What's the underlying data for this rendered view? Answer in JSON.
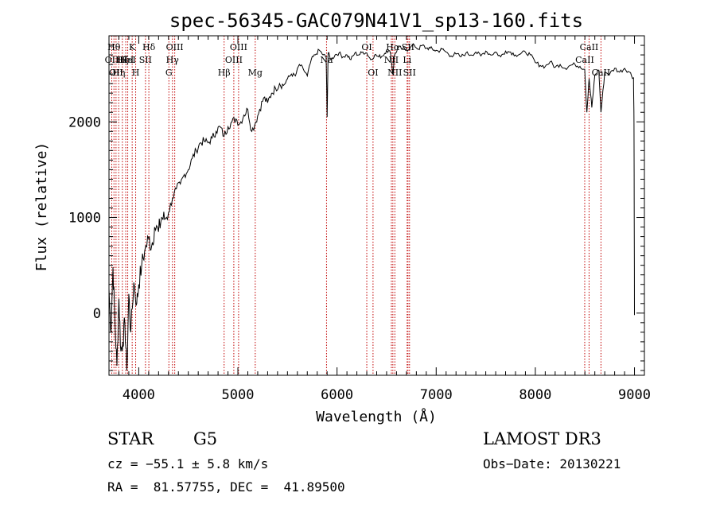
{
  "chart_data": {
    "type": "line",
    "title": "spec-56345-GAC079N41V1_sp13-160.fits",
    "xlabel": "Wavelength (Å)",
    "ylabel": "Flux (relative)",
    "xlim": [
      3700,
      9100
    ],
    "ylim": [
      -650,
      2900
    ],
    "x_ticks": [
      4000,
      5000,
      6000,
      7000,
      8000,
      9000
    ],
    "y_ticks": [
      0,
      1000,
      2000
    ],
    "grid": false,
    "series": [
      {
        "name": "flux",
        "x": [
          3700,
          3720,
          3740,
          3760,
          3780,
          3800,
          3820,
          3840,
          3860,
          3880,
          3900,
          3920,
          3950,
          3980,
          4000,
          4030,
          4060,
          4100,
          4130,
          4160,
          4200,
          4230,
          4260,
          4300,
          4340,
          4380,
          4420,
          4460,
          4500,
          4540,
          4580,
          4620,
          4660,
          4700,
          4740,
          4780,
          4820,
          4860,
          4900,
          4940,
          4980,
          5020,
          5060,
          5100,
          5140,
          5180,
          5220,
          5260,
          5300,
          5340,
          5380,
          5420,
          5460,
          5500,
          5540,
          5580,
          5620,
          5660,
          5700,
          5740,
          5780,
          5820,
          5860,
          5890,
          5900,
          5910,
          5940,
          5980,
          6020,
          6060,
          6100,
          6140,
          6180,
          6220,
          6260,
          6300,
          6340,
          6380,
          6420,
          6460,
          6500,
          6540,
          6563,
          6580,
          6620,
          6660,
          6700,
          6740,
          6780,
          6820,
          6860,
          6900,
          6940,
          6980,
          7020,
          7060,
          7100,
          7150,
          7200,
          7250,
          7300,
          7350,
          7400,
          7450,
          7500,
          7550,
          7600,
          7650,
          7700,
          7750,
          7800,
          7850,
          7900,
          7950,
          8000,
          8050,
          8100,
          8150,
          8200,
          8250,
          8300,
          8350,
          8400,
          8450,
          8498,
          8520,
          8542,
          8570,
          8600,
          8640,
          8662,
          8700,
          8750,
          8800,
          8850,
          8900,
          8950,
          8990,
          8995,
          9000
        ],
        "values": [
          250,
          -200,
          480,
          -100,
          -550,
          150,
          -400,
          -300,
          -100,
          -600,
          200,
          -200,
          320,
          100,
          300,
          500,
          650,
          780,
          700,
          900,
          850,
          1000,
          980,
          1050,
          1200,
          1300,
          1350,
          1450,
          1500,
          1620,
          1700,
          1780,
          1800,
          1780,
          1830,
          1900,
          1950,
          1850,
          1950,
          2000,
          2030,
          1980,
          2070,
          2130,
          1900,
          2000,
          2130,
          2250,
          2200,
          2300,
          2350,
          2400,
          2380,
          2450,
          2500,
          2480,
          2600,
          2550,
          2480,
          2650,
          2700,
          2750,
          2700,
          2680,
          2050,
          2720,
          2650,
          2700,
          2720,
          2680,
          2700,
          2650,
          2720,
          2700,
          2730,
          2720,
          2650,
          2700,
          2680,
          2690,
          2750,
          2720,
          2500,
          2700,
          2780,
          2760,
          2750,
          2780,
          2800,
          2760,
          2800,
          2770,
          2770,
          2750,
          2740,
          2760,
          2730,
          2690,
          2710,
          2680,
          2720,
          2700,
          2730,
          2690,
          2740,
          2700,
          2730,
          2680,
          2740,
          2730,
          2700,
          2710,
          2730,
          2700,
          2620,
          2590,
          2580,
          2630,
          2570,
          2600,
          2560,
          2590,
          2600,
          2580,
          2550,
          2100,
          2450,
          2150,
          2490,
          2540,
          2100,
          2520,
          2500,
          2560,
          2520,
          2560,
          2520,
          2460,
          2000,
          -20
        ]
      }
    ],
    "lines": [
      {
        "x": 3728,
        "label": "OII",
        "row": 2
      },
      {
        "x": 3750,
        "label": "Hθ",
        "row": 1
      },
      {
        "x": 3771,
        "label": "OII",
        "row": 3
      },
      {
        "x": 3798,
        "label": "Hη",
        "row": 3
      },
      {
        "x": 3835,
        "label": "Hζ",
        "row": 2
      },
      {
        "x": 3869,
        "label": "HeI",
        "row": 2
      },
      {
        "x": 3889,
        "label": "HeI",
        "row": 2
      },
      {
        "x": 3934,
        "label": "K",
        "row": 1
      },
      {
        "x": 3969,
        "label": "H",
        "row": 3
      },
      {
        "x": 4068,
        "label": "SII",
        "row": 2
      },
      {
        "x": 4102,
        "label": "Hδ",
        "row": 1
      },
      {
        "x": 4304,
        "label": "G",
        "row": 3
      },
      {
        "x": 4340,
        "label": "Hγ",
        "row": 2
      },
      {
        "x": 4363,
        "label": "OIII",
        "row": 1
      },
      {
        "x": 4861,
        "label": "Hβ",
        "row": 3
      },
      {
        "x": 4959,
        "label": "OIII",
        "row": 2
      },
      {
        "x": 5007,
        "label": "OIII",
        "row": 1
      },
      {
        "x": 5175,
        "label": "Mg",
        "row": 3
      },
      {
        "x": 5894,
        "label": "Na",
        "row": 2
      },
      {
        "x": 6300,
        "label": "OI",
        "row": 1
      },
      {
        "x": 6363,
        "label": "OI",
        "row": 3
      },
      {
        "x": 6548,
        "label": "NII",
        "row": 2
      },
      {
        "x": 6563,
        "label": "Hα",
        "row": 1
      },
      {
        "x": 6583,
        "label": "NII",
        "row": 3
      },
      {
        "x": 6707,
        "label": "Li",
        "row": 2
      },
      {
        "x": 6716,
        "label": "SII",
        "row": 1
      },
      {
        "x": 6731,
        "label": "SII",
        "row": 3
      },
      {
        "x": 8498,
        "label": "CaII",
        "row": 2
      },
      {
        "x": 8542,
        "label": "CaII",
        "row": 1
      },
      {
        "x": 8662,
        "label": "CaII",
        "row": 3
      }
    ]
  },
  "info": {
    "class": "STAR",
    "subclass": "G5",
    "survey": "LAMOST DR3",
    "cz": "cz = −55.1 ± 5.8 km/s",
    "obs_date": "Obs−Date: 20130221",
    "coords": "RA =  81.57755, DEC =  41.89500"
  }
}
